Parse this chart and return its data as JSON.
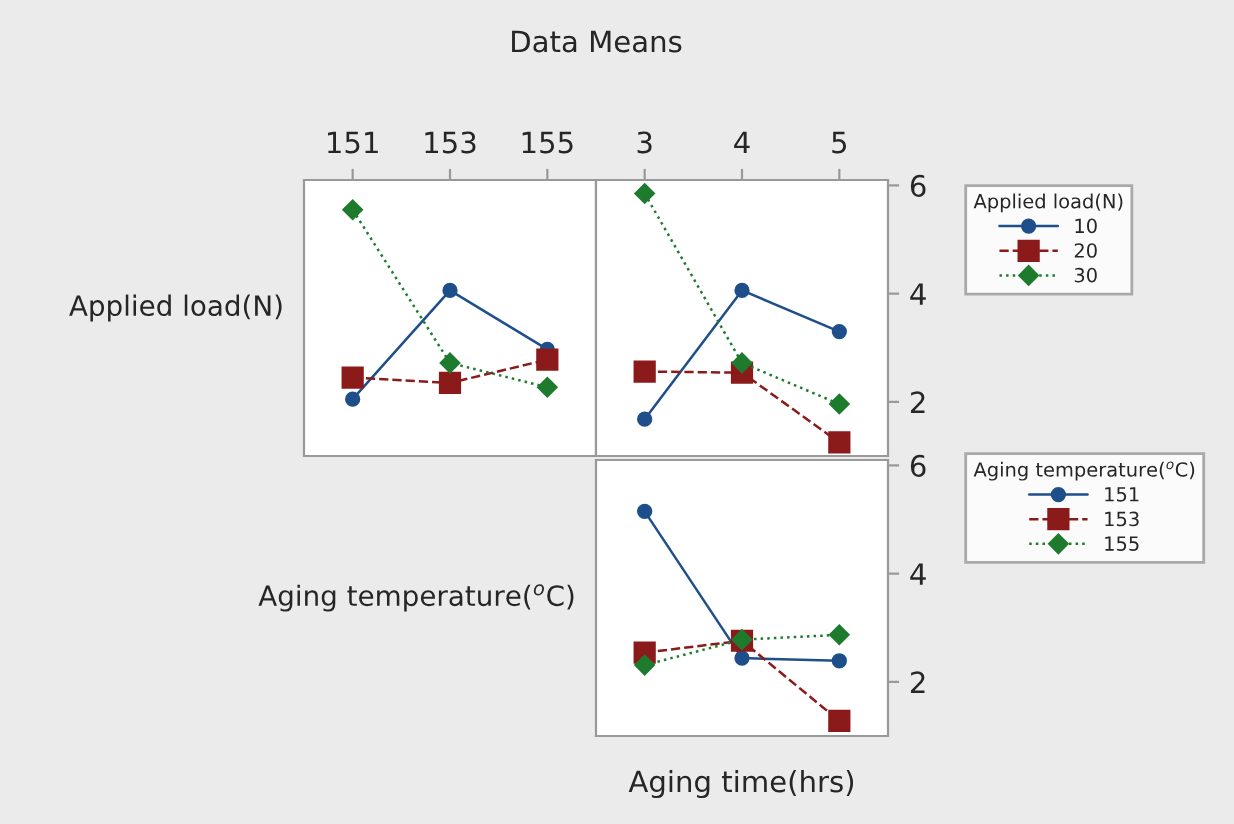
{
  "chart_data": [
    {
      "type": "line",
      "title": "Data Means",
      "ylabel": "Applied load(N)",
      "categories": [
        "151",
        "153",
        "155"
      ],
      "ylim": [
        1.0,
        6.1
      ],
      "yticks": [
        2,
        4,
        6
      ],
      "tick_labels": "x",
      "legend": false,
      "grid": false,
      "series": [
        {
          "color": "#1f4f8a",
          "marker": "circle",
          "line_style": "solid",
          "values": [
            2.05,
            4.06,
            2.97
          ]
        },
        {
          "color": "#8b1a1a",
          "marker": "square",
          "line_style": "dashed",
          "values": [
            2.45,
            2.35,
            2.78
          ]
        },
        {
          "color": "#1e7b2e",
          "marker": "diamond",
          "line_style": "dotted",
          "values": [
            5.55,
            2.72,
            2.27
          ]
        }
      ]
    },
    {
      "type": "line",
      "categories": [
        "3",
        "4",
        "5"
      ],
      "ylim": [
        1.0,
        6.1
      ],
      "yticks": [
        2,
        4,
        6
      ],
      "legend": "right",
      "legend_title": "Applied load(N)",
      "grid": false,
      "series": [
        {
          "name": "10",
          "color": "#1f4f8a",
          "marker": "circle",
          "line_style": "solid",
          "values": [
            1.68,
            4.06,
            3.3
          ]
        },
        {
          "name": "20",
          "color": "#8b1a1a",
          "marker": "square",
          "line_style": "dashed",
          "values": [
            2.56,
            2.54,
            1.25
          ]
        },
        {
          "name": "30",
          "color": "#1e7b2e",
          "marker": "diamond",
          "line_style": "dotted",
          "values": [
            5.85,
            2.72,
            1.96
          ]
        }
      ]
    },
    {
      "type": "line",
      "ylabel": "Aging temperature($^{o}$C)",
      "xlabel": "Aging time(hrs)",
      "categories": [
        "3",
        "4",
        "5"
      ],
      "ylim": [
        1.0,
        6.1
      ],
      "yticks": [
        2,
        4,
        6
      ],
      "tick_labels": "y",
      "legend": "right",
      "legend_title": "Aging temperature($^{o}$C)",
      "grid": false,
      "series": [
        {
          "name": "151",
          "color": "#1f4f8a",
          "marker": "circle",
          "line_style": "solid",
          "values": [
            5.15,
            2.44,
            2.39
          ]
        },
        {
          "name": "153",
          "color": "#8b1a1a",
          "marker": "square",
          "line_style": "dashed",
          "values": [
            2.54,
            2.76,
            1.28
          ]
        },
        {
          "name": "155",
          "color": "#1e7b2e",
          "marker": "diamond",
          "line_style": "dotted",
          "values": [
            2.31,
            2.78,
            2.87
          ]
        }
      ]
    }
  ]
}
